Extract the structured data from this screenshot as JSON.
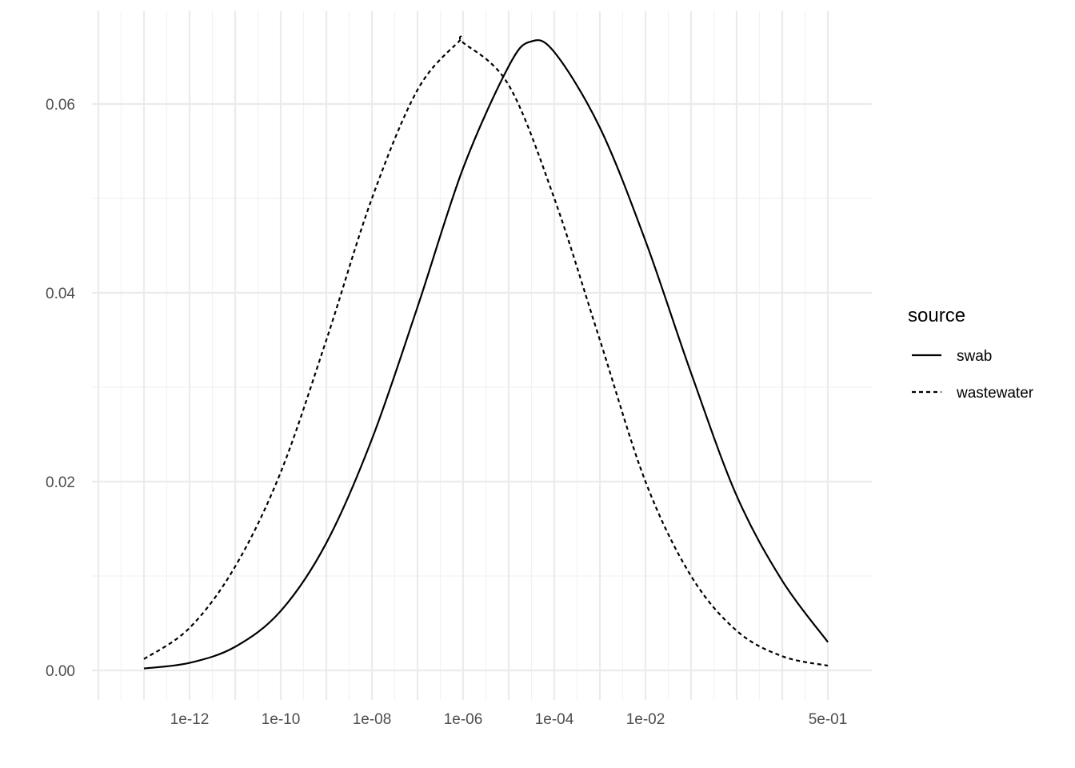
{
  "chart_data": {
    "type": "line",
    "title": "",
    "xlabel": "",
    "ylabel": "",
    "x_scale": "log10",
    "xlim": [
      1e-14,
      100.0
    ],
    "ylim": [
      0,
      0.0667
    ],
    "x_ticks": [
      {
        "value": 1e-12,
        "label": "1e-12"
      },
      {
        "value": 1e-10,
        "label": "1e-10"
      },
      {
        "value": 1e-08,
        "label": "1e-08"
      },
      {
        "value": 1e-06,
        "label": "1e-06"
      },
      {
        "value": 0.0001,
        "label": "1e-04"
      },
      {
        "value": 0.01,
        "label": "1e-02"
      },
      {
        "value": 0.5,
        "label": "5e-01"
      }
    ],
    "y_ticks": [
      {
        "value": 0.0,
        "label": "0.00"
      },
      {
        "value": 0.02,
        "label": "0.02"
      },
      {
        "value": 0.04,
        "label": "0.04"
      },
      {
        "value": 0.06,
        "label": "0.06"
      }
    ],
    "grid": true,
    "legend": {
      "title": "source",
      "position": "right"
    },
    "series": [
      {
        "name": "swab",
        "line_style": "solid",
        "color": "#000000",
        "x": [
          1e-13,
          1e-12,
          1e-11,
          1e-10,
          1e-09,
          1e-08,
          1e-07,
          1e-06,
          1e-05,
          3e-05,
          0.0001,
          0.001,
          0.01,
          0.1,
          1,
          10,
          100
        ],
        "y": [
          0.0002,
          0.0008,
          0.0025,
          0.0063,
          0.0135,
          0.0245,
          0.0385,
          0.0532,
          0.064,
          0.0666,
          0.0655,
          0.0575,
          0.0455,
          0.0315,
          0.0185,
          0.0095,
          0.003
        ]
      },
      {
        "name": "wastewater",
        "line_style": "dashed",
        "color": "#000000",
        "x": [
          1e-13,
          1e-12,
          1e-11,
          1e-10,
          1e-09,
          1e-08,
          1e-07,
          8e-07,
          1e-06,
          1e-05,
          0.0001,
          0.001,
          0.01,
          0.1,
          1,
          10,
          100
        ],
        "y": [
          0.0012,
          0.0045,
          0.011,
          0.021,
          0.035,
          0.05,
          0.0615,
          0.0666,
          0.0665,
          0.062,
          0.05,
          0.035,
          0.02,
          0.01,
          0.0042,
          0.0015,
          0.0005
        ]
      }
    ]
  }
}
